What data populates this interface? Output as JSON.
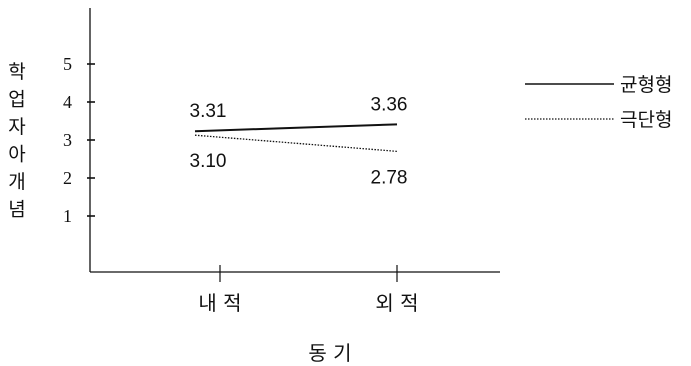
{
  "chart_data": {
    "type": "line",
    "title": "",
    "categories": [
      "내 적",
      "외 적"
    ],
    "xlabel": "동 기",
    "ylabel": "학업자아개념",
    "yticks": [
      1,
      2,
      3,
      4,
      5
    ],
    "ylim": [
      0,
      6
    ],
    "grid": false,
    "legend_position": "right",
    "series": [
      {
        "name": "균형형",
        "values": [
          3.31,
          3.36
        ],
        "value_labels": [
          "3.31",
          "3.36"
        ],
        "line_style": "solid",
        "color": "#111111"
      },
      {
        "name": "극단형",
        "values": [
          3.1,
          2.78
        ],
        "value_labels": [
          "3.10",
          "2.78"
        ],
        "line_style": "dotted",
        "color": "#111111"
      }
    ]
  }
}
